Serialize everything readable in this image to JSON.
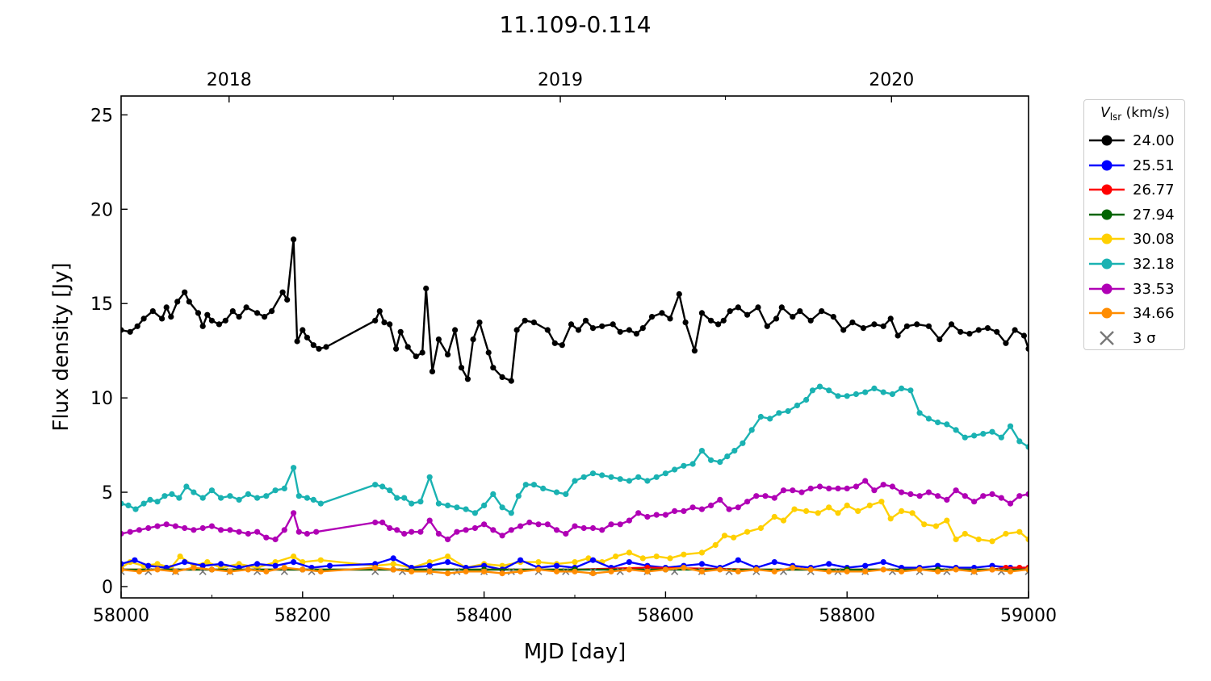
{
  "chart_data": {
    "type": "line",
    "title": "11.109-0.114",
    "xlabel": "MJD [day]",
    "ylabel": "Flux density [Jy]",
    "xlim": [
      58000,
      59000
    ],
    "ylim": [
      -0.6,
      26
    ],
    "xticks": [
      58000,
      58200,
      58400,
      58600,
      58800,
      59000
    ],
    "yticks": [
      0,
      5,
      10,
      15,
      20,
      25
    ],
    "top_axis": {
      "ticks": [
        {
          "label": "2018",
          "mjd": 58119
        },
        {
          "label": "2019",
          "mjd": 58484
        },
        {
          "label": "2020",
          "mjd": 58849
        }
      ],
      "minor_mjd": [
        58300,
        58666
      ]
    },
    "legend": {
      "title_main": "V",
      "title_sub": "lsr",
      "title_unit": " (km/s)",
      "placement": "outside-right-top"
    },
    "grid": false,
    "series": [
      {
        "name": "24.00",
        "color": "#000000",
        "marker": "circle",
        "x": [
          58000,
          58010,
          58018,
          58025,
          58035,
          58045,
          58050,
          58055,
          58062,
          58070,
          58075,
          58085,
          58090,
          58095,
          58100,
          58108,
          58115,
          58123,
          58130,
          58138,
          58150,
          58158,
          58166,
          58178,
          58183,
          58190,
          58194,
          58200,
          58205,
          58212,
          58218,
          58226,
          58280,
          58285,
          58290,
          58296,
          58303,
          58308,
          58316,
          58325,
          58332,
          58336,
          58343,
          58350,
          58360,
          58368,
          58375,
          58382,
          58388,
          58395,
          58405,
          58410,
          58420,
          58430,
          58436,
          58445,
          58455,
          58470,
          58478,
          58486,
          58496,
          58504,
          58512,
          58520,
          58530,
          58542,
          58550,
          58560,
          58568,
          58575,
          58585,
          58596,
          58605,
          58615,
          58622,
          58632,
          58640,
          58650,
          58658,
          58664,
          58671,
          58680,
          58690,
          58702,
          58712,
          58722,
          58728,
          58740,
          58748,
          58760,
          58772,
          58785,
          58796,
          58806,
          58818,
          58830,
          58840,
          58848,
          58856,
          58866,
          58877,
          58890,
          58902,
          58915,
          58925,
          58935,
          58945,
          58955,
          58965,
          58975,
          58985,
          58995,
          59000
        ],
        "y": [
          13.6,
          13.5,
          13.8,
          14.2,
          14.6,
          14.2,
          14.8,
          14.3,
          15.1,
          15.6,
          15.1,
          14.5,
          13.8,
          14.4,
          14.1,
          13.9,
          14.1,
          14.6,
          14.3,
          14.8,
          14.5,
          14.3,
          14.6,
          15.6,
          15.2,
          18.4,
          13.0,
          13.6,
          13.2,
          12.8,
          12.6,
          12.7,
          14.1,
          14.6,
          14.0,
          13.9,
          12.6,
          13.5,
          12.7,
          12.2,
          12.4,
          15.8,
          11.4,
          13.1,
          12.3,
          13.6,
          11.6,
          11.0,
          13.1,
          14.0,
          12.4,
          11.6,
          11.1,
          10.9,
          13.6,
          14.1,
          14.0,
          13.6,
          12.9,
          12.8,
          13.9,
          13.6,
          14.1,
          13.7,
          13.8,
          13.9,
          13.5,
          13.6,
          13.4,
          13.7,
          14.3,
          14.5,
          14.2,
          15.5,
          14.0,
          12.5,
          14.5,
          14.1,
          13.9,
          14.1,
          14.6,
          14.8,
          14.4,
          14.8,
          13.8,
          14.2,
          14.8,
          14.3,
          14.6,
          14.1,
          14.6,
          14.3,
          13.6,
          14.0,
          13.7,
          13.9,
          13.8,
          14.2,
          13.3,
          13.8,
          13.9,
          13.8,
          13.1,
          13.9,
          13.5,
          13.4,
          13.6,
          13.7,
          13.5,
          12.9,
          13.6,
          13.3,
          12.6
        ]
      },
      {
        "name": "25.51",
        "color": "#0000ff",
        "marker": "circle",
        "x": [
          58000,
          58015,
          58030,
          58050,
          58070,
          58090,
          58110,
          58130,
          58150,
          58170,
          58190,
          58210,
          58230,
          58280,
          58300,
          58320,
          58340,
          58360,
          58380,
          58400,
          58420,
          58440,
          58460,
          58480,
          58500,
          58520,
          58540,
          58560,
          58580,
          58600,
          58620,
          58640,
          58660,
          58680,
          58700,
          58720,
          58740,
          58760,
          58780,
          58800,
          58820,
          58840,
          58860,
          58880,
          58900,
          58920,
          58940,
          58960,
          58980,
          59000
        ],
        "y": [
          1.2,
          1.4,
          1.1,
          1.0,
          1.3,
          1.1,
          1.2,
          1.0,
          1.2,
          1.1,
          1.3,
          1.0,
          1.1,
          1.2,
          1.5,
          1.0,
          1.1,
          1.3,
          1.0,
          1.1,
          0.9,
          1.4,
          1.0,
          1.1,
          1.0,
          1.4,
          1.0,
          1.3,
          1.1,
          1.0,
          1.1,
          1.2,
          1.0,
          1.4,
          1.0,
          1.3,
          1.1,
          1.0,
          1.2,
          1.0,
          1.1,
          1.3,
          1.0,
          1.0,
          1.1,
          1.0,
          1.0,
          1.1,
          1.0,
          1.0
        ]
      },
      {
        "name": "26.77",
        "color": "#ff0000",
        "marker": "circle",
        "x": [
          58000,
          58100,
          58200,
          58300,
          58400,
          58500,
          58580,
          58700,
          58800,
          58900,
          58960,
          58975,
          58990,
          59000
        ],
        "y": [
          0.9,
          0.9,
          0.9,
          0.9,
          0.9,
          0.9,
          1.0,
          0.9,
          0.9,
          0.9,
          0.9,
          1.0,
          1.0,
          1.0
        ]
      },
      {
        "name": "27.94",
        "color": "#006400",
        "marker": "circle",
        "x": [
          58000,
          58100,
          58200,
          58300,
          58400,
          58500,
          58600,
          58700,
          58800,
          58900,
          59000
        ],
        "y": [
          0.9,
          0.9,
          0.9,
          0.9,
          0.9,
          0.9,
          0.9,
          0.9,
          0.9,
          0.9,
          0.9
        ]
      },
      {
        "name": "30.08",
        "color": "#ffd000",
        "marker": "circle",
        "x": [
          58000,
          58010,
          58025,
          58040,
          58055,
          58065,
          58080,
          58095,
          58110,
          58130,
          58150,
          58170,
          58190,
          58200,
          58220,
          58280,
          58300,
          58320,
          58340,
          58360,
          58380,
          58400,
          58420,
          58440,
          58460,
          58480,
          58500,
          58515,
          58530,
          58545,
          58560,
          58575,
          58590,
          58605,
          58620,
          58640,
          58655,
          58665,
          58675,
          58690,
          58705,
          58720,
          58730,
          58742,
          58755,
          58768,
          58780,
          58790,
          58800,
          58812,
          58825,
          58838,
          58848,
          58860,
          58872,
          58885,
          58898,
          58910,
          58920,
          58930,
          58945,
          58960,
          58975,
          58990,
          59000
        ],
        "y": [
          1.0,
          1.3,
          1.1,
          1.2,
          1.0,
          1.6,
          1.1,
          1.3,
          1.0,
          1.2,
          1.0,
          1.3,
          1.6,
          1.3,
          1.4,
          1.1,
          1.2,
          1.0,
          1.3,
          1.6,
          1.0,
          1.2,
          1.1,
          1.3,
          1.3,
          1.2,
          1.3,
          1.5,
          1.3,
          1.6,
          1.8,
          1.5,
          1.6,
          1.5,
          1.7,
          1.8,
          2.2,
          2.7,
          2.6,
          2.9,
          3.1,
          3.7,
          3.5,
          4.1,
          4.0,
          3.9,
          4.2,
          3.9,
          4.3,
          4.0,
          4.3,
          4.5,
          3.6,
          4.0,
          3.9,
          3.3,
          3.2,
          3.5,
          2.5,
          2.8,
          2.5,
          2.4,
          2.8,
          2.9,
          2.5
        ]
      },
      {
        "name": "32.18",
        "color": "#1ab2b2",
        "marker": "circle",
        "x": [
          58000,
          58008,
          58016,
          58025,
          58032,
          58040,
          58048,
          58056,
          58064,
          58072,
          58080,
          58090,
          58100,
          58110,
          58120,
          58130,
          58140,
          58150,
          58160,
          58170,
          58180,
          58190,
          58196,
          58205,
          58212,
          58220,
          58280,
          58288,
          58296,
          58304,
          58312,
          58320,
          58330,
          58340,
          58350,
          58360,
          58370,
          58380,
          58390,
          58400,
          58410,
          58420,
          58430,
          58438,
          58446,
          58455,
          58465,
          58480,
          58490,
          58500,
          58510,
          58520,
          58530,
          58540,
          58550,
          58560,
          58570,
          58580,
          58590,
          58600,
          58610,
          58620,
          58630,
          58640,
          58650,
          58660,
          58668,
          58676,
          58685,
          58695,
          58705,
          58715,
          58725,
          58735,
          58745,
          58755,
          58762,
          58770,
          58780,
          58790,
          58800,
          58810,
          58820,
          58830,
          58840,
          58850,
          58860,
          58870,
          58880,
          58890,
          58900,
          58910,
          58920,
          58930,
          58940,
          58950,
          58960,
          58970,
          58980,
          58990,
          59000
        ],
        "y": [
          4.4,
          4.3,
          4.1,
          4.4,
          4.6,
          4.5,
          4.8,
          4.9,
          4.7,
          5.3,
          5.0,
          4.7,
          5.1,
          4.7,
          4.8,
          4.6,
          4.9,
          4.7,
          4.8,
          5.1,
          5.2,
          6.3,
          4.8,
          4.7,
          4.6,
          4.4,
          5.4,
          5.3,
          5.1,
          4.7,
          4.7,
          4.4,
          4.5,
          5.8,
          4.4,
          4.3,
          4.2,
          4.1,
          3.9,
          4.3,
          4.9,
          4.2,
          3.9,
          4.8,
          5.4,
          5.4,
          5.2,
          5.0,
          4.9,
          5.6,
          5.8,
          6.0,
          5.9,
          5.8,
          5.7,
          5.6,
          5.8,
          5.6,
          5.8,
          6.0,
          6.2,
          6.4,
          6.5,
          7.2,
          6.7,
          6.6,
          6.9,
          7.2,
          7.6,
          8.3,
          9.0,
          8.9,
          9.2,
          9.3,
          9.6,
          9.9,
          10.4,
          10.6,
          10.4,
          10.1,
          10.1,
          10.2,
          10.3,
          10.5,
          10.3,
          10.2,
          10.5,
          10.4,
          9.2,
          8.9,
          8.7,
          8.6,
          8.3,
          7.9,
          8.0,
          8.1,
          8.2,
          7.9,
          8.5,
          7.7,
          7.4
        ]
      },
      {
        "name": "33.53",
        "color": "#b000b5",
        "marker": "circle",
        "x": [
          58000,
          58010,
          58020,
          58030,
          58040,
          58050,
          58060,
          58070,
          58080,
          58090,
          58100,
          58110,
          58120,
          58130,
          58140,
          58150,
          58160,
          58170,
          58180,
          58190,
          58196,
          58205,
          58215,
          58280,
          58288,
          58296,
          58304,
          58312,
          58320,
          58330,
          58340,
          58350,
          58360,
          58370,
          58380,
          58390,
          58400,
          58410,
          58420,
          58430,
          58440,
          58450,
          58460,
          58470,
          58480,
          58490,
          58500,
          58510,
          58520,
          58530,
          58540,
          58550,
          58560,
          58570,
          58580,
          58590,
          58600,
          58610,
          58620,
          58630,
          58640,
          58650,
          58660,
          58670,
          58680,
          58690,
          58700,
          58710,
          58720,
          58730,
          58740,
          58750,
          58760,
          58770,
          58780,
          58790,
          58800,
          58810,
          58820,
          58830,
          58840,
          58850,
          58860,
          58870,
          58880,
          58890,
          58900,
          58910,
          58920,
          58930,
          58940,
          58950,
          58960,
          58970,
          58980,
          58990,
          59000
        ],
        "y": [
          2.8,
          2.9,
          3.0,
          3.1,
          3.2,
          3.3,
          3.2,
          3.1,
          3.0,
          3.1,
          3.2,
          3.0,
          3.0,
          2.9,
          2.8,
          2.9,
          2.6,
          2.5,
          3.0,
          3.9,
          2.9,
          2.8,
          2.9,
          3.4,
          3.4,
          3.1,
          3.0,
          2.8,
          2.9,
          2.9,
          3.5,
          2.8,
          2.5,
          2.9,
          3.0,
          3.1,
          3.3,
          3.0,
          2.7,
          3.0,
          3.2,
          3.4,
          3.3,
          3.3,
          3.0,
          2.8,
          3.2,
          3.1,
          3.1,
          3.0,
          3.3,
          3.3,
          3.5,
          3.9,
          3.7,
          3.8,
          3.8,
          4.0,
          4.0,
          4.2,
          4.1,
          4.3,
          4.6,
          4.1,
          4.2,
          4.5,
          4.8,
          4.8,
          4.7,
          5.1,
          5.1,
          5.0,
          5.2,
          5.3,
          5.2,
          5.2,
          5.2,
          5.3,
          5.6,
          5.1,
          5.4,
          5.3,
          5.0,
          4.9,
          4.8,
          5.0,
          4.8,
          4.6,
          5.1,
          4.8,
          4.5,
          4.8,
          4.9,
          4.7,
          4.4,
          4.8,
          4.9
        ]
      },
      {
        "name": "34.66",
        "color": "#ff8c00",
        "marker": "circle",
        "x": [
          58000,
          58020,
          58040,
          58060,
          58080,
          58100,
          58120,
          58140,
          58160,
          58180,
          58200,
          58220,
          58280,
          58300,
          58320,
          58340,
          58360,
          58380,
          58400,
          58420,
          58440,
          58460,
          58480,
          58500,
          58520,
          58540,
          58560,
          58580,
          58600,
          58620,
          58640,
          58660,
          58680,
          58700,
          58720,
          58740,
          58760,
          58780,
          58800,
          58820,
          58840,
          58860,
          58880,
          58900,
          58920,
          58940,
          58960,
          58980,
          59000
        ],
        "y": [
          0.9,
          0.8,
          0.9,
          0.8,
          1.0,
          0.9,
          0.8,
          0.9,
          0.8,
          1.0,
          0.9,
          0.8,
          1.0,
          0.9,
          0.8,
          0.8,
          0.7,
          0.8,
          0.8,
          0.7,
          0.8,
          0.9,
          0.8,
          0.8,
          0.7,
          0.8,
          0.9,
          0.8,
          0.9,
          1.0,
          0.8,
          0.9,
          0.8,
          0.9,
          0.8,
          1.0,
          0.9,
          0.8,
          0.8,
          0.8,
          0.9,
          0.8,
          0.9,
          0.8,
          0.9,
          0.8,
          0.9,
          0.8,
          0.9
        ]
      },
      {
        "name": "3 σ",
        "color": "#777777",
        "marker": "x",
        "x": [
          58000,
          58030,
          58060,
          58090,
          58120,
          58150,
          58180,
          58210,
          58280,
          58310,
          58340,
          58370,
          58400,
          58430,
          58460,
          58490,
          58520,
          58550,
          58580,
          58610,
          58640,
          58670,
          58700,
          58730,
          58760,
          58790,
          58820,
          58850,
          58880,
          58910,
          58940,
          58970,
          59000
        ],
        "y": [
          0.8,
          0.8,
          0.8,
          0.8,
          0.8,
          0.8,
          0.8,
          0.8,
          0.8,
          0.8,
          0.8,
          0.8,
          0.8,
          0.8,
          0.8,
          0.8,
          0.8,
          0.8,
          0.8,
          0.8,
          0.8,
          0.8,
          0.8,
          0.8,
          0.8,
          0.8,
          0.8,
          0.8,
          0.8,
          0.8,
          0.8,
          0.8,
          0.8
        ]
      }
    ]
  }
}
